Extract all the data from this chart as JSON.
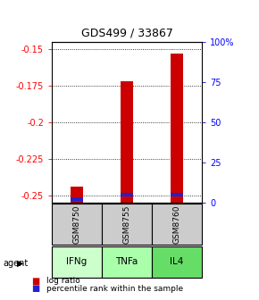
{
  "title": "GDS499 / 33867",
  "samples": [
    "GSM8750",
    "GSM8755",
    "GSM8760"
  ],
  "agents": [
    "IFNg",
    "TNFa",
    "IL4"
  ],
  "log_ratios": [
    -0.244,
    -0.172,
    -0.153
  ],
  "percentile_ranks": [
    2,
    5,
    5
  ],
  "ylim_left": [
    -0.255,
    -0.145
  ],
  "ylim_right": [
    0,
    100
  ],
  "yticks_left": [
    -0.25,
    -0.225,
    -0.2,
    -0.175,
    -0.15
  ],
  "yticks_right": [
    0,
    25,
    50,
    75,
    100
  ],
  "bar_width": 0.25,
  "red_color": "#cc0000",
  "blue_color": "#2222cc",
  "sample_bg": "#cccccc",
  "agent_colors": [
    "#ccffcc",
    "#aaffaa",
    "#66dd66"
  ],
  "legend_red": "log ratio",
  "legend_blue": "percentile rank within the sample"
}
